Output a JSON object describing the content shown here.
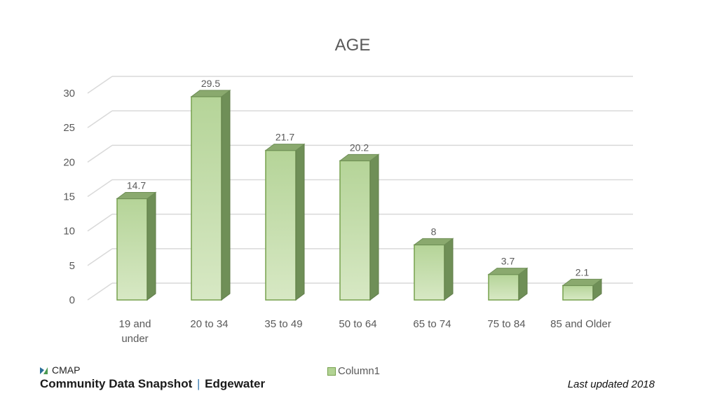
{
  "chart_data": {
    "type": "bar",
    "title": "AGE",
    "categories": [
      [
        "19   and",
        "under"
      ],
      [
        "20  to 34"
      ],
      [
        "35 to 49"
      ],
      [
        "50 to 64"
      ],
      [
        "65 to 74"
      ],
      [
        "75 to 84"
      ],
      [
        "85 and Older"
      ]
    ],
    "series": [
      {
        "name": "Column1",
        "values": [
          14.7,
          29.5,
          21.7,
          20.2,
          8,
          3.7,
          2.1
        ],
        "color": "#a9cf85"
      }
    ],
    "ylim": [
      0,
      30
    ],
    "yticks": [
      0,
      5,
      10,
      15,
      20,
      25,
      30
    ],
    "grid": true,
    "legend": "bottom"
  },
  "footer": {
    "brand_name": "CMAP",
    "snapshot_label": "Community Data Snapshot",
    "separator": "|",
    "community": "Edgewater",
    "last_updated": "Last updated 2018",
    "logo_color": "#3a7d6b"
  }
}
